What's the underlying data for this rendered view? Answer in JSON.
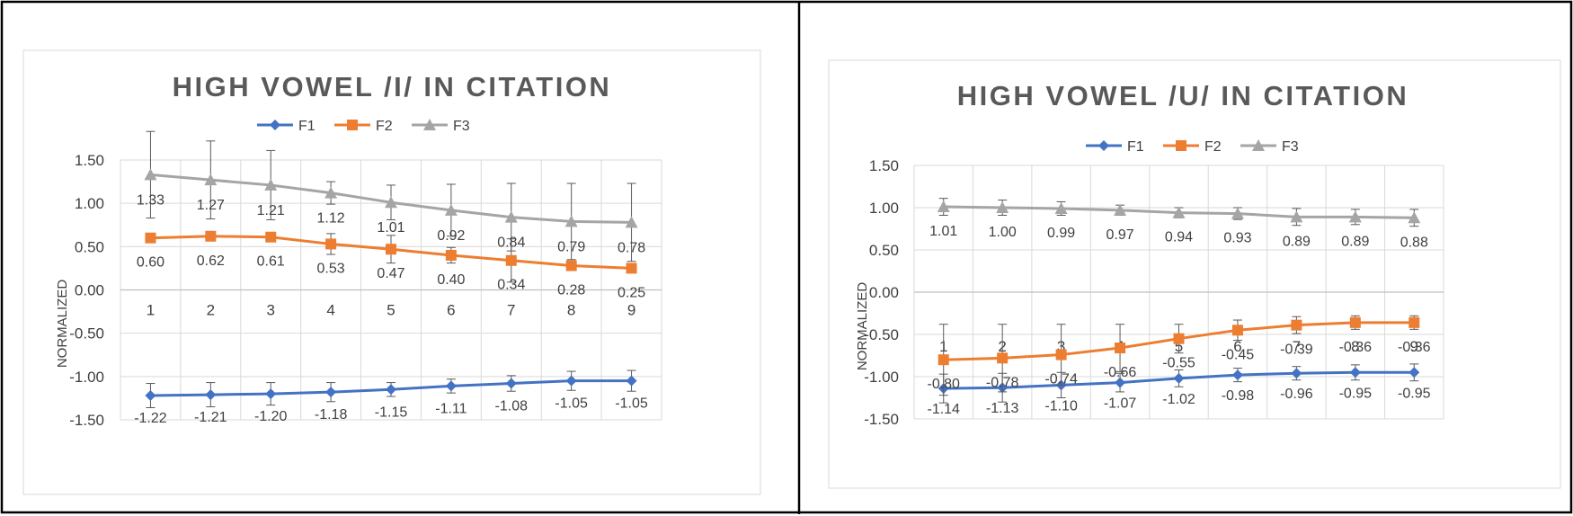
{
  "chart_data": [
    {
      "type": "line",
      "title": "HIGH VOWEL /I/ IN CITATION",
      "xlabel": "",
      "ylabel": "NORMALIZED",
      "ylim": [
        -1.5,
        1.5
      ],
      "yticks": [
        "1.50",
        "1.00",
        "0.50",
        "0.00",
        "-0.50",
        "-1.00",
        "-1.50"
      ],
      "categories": [
        "1",
        "2",
        "3",
        "4",
        "5",
        "6",
        "7",
        "8",
        "9"
      ],
      "grid": true,
      "legend": "top-center",
      "series": [
        {
          "name": "F1",
          "color": "#4472C4",
          "marker": "diamond",
          "values": [
            -1.22,
            -1.21,
            -1.2,
            -1.18,
            -1.15,
            -1.11,
            -1.08,
            -1.05,
            -1.05
          ],
          "labels": [
            "-1.22",
            "-1.21",
            "-1.20",
            "-1.18",
            "-1.15",
            "-1.11",
            "-1.08",
            "-1.05",
            "-1.05"
          ],
          "error": [
            0.14,
            0.14,
            0.13,
            0.11,
            0.08,
            0.08,
            0.09,
            0.11,
            0.12
          ]
        },
        {
          "name": "F2",
          "color": "#ED7D31",
          "marker": "square",
          "values": [
            0.6,
            0.62,
            0.61,
            0.53,
            0.47,
            0.4,
            0.34,
            0.28,
            0.25
          ],
          "labels": [
            "0.60",
            "0.62",
            "0.61",
            "0.53",
            "0.47",
            "0.40",
            "0.34",
            "0.28",
            "0.25"
          ],
          "error": [
            0.05,
            0.05,
            0.05,
            0.12,
            0.16,
            0.09,
            0.25,
            0.05,
            0.05
          ]
        },
        {
          "name": "F3",
          "color": "#A5A5A5",
          "marker": "triangle",
          "values": [
            1.33,
            1.27,
            1.21,
            1.12,
            1.01,
            0.92,
            0.84,
            0.79,
            0.78
          ],
          "labels": [
            "1.33",
            "1.27",
            "1.21",
            "1.12",
            "1.01",
            "0.92",
            "0.84",
            "0.79",
            "0.78"
          ],
          "error": [
            0.5,
            0.45,
            0.4,
            0.13,
            0.2,
            0.3,
            0.39,
            0.44,
            0.45
          ]
        }
      ]
    },
    {
      "type": "line",
      "title": "HIGH VOWEL /U/ IN CITATION",
      "xlabel": "",
      "ylabel": "NORMALIZED",
      "ylim": [
        -1.5,
        1.5
      ],
      "yticks": [
        "1.50",
        "1.00",
        "0.50",
        "0.00",
        "-0.50",
        "-1.00",
        "-1.50"
      ],
      "categories": [
        "1",
        "2",
        "3",
        "4",
        "5",
        "6",
        "7",
        "8",
        "9"
      ],
      "grid": true,
      "legend": "top-center",
      "series": [
        {
          "name": "F1",
          "color": "#4472C4",
          "marker": "diamond",
          "values": [
            -1.14,
            -1.13,
            -1.1,
            -1.07,
            -1.02,
            -0.98,
            -0.96,
            -0.95,
            -0.95
          ],
          "labels": [
            "-1.14",
            "-1.13",
            "-1.10",
            "-1.07",
            "-1.02",
            "-0.98",
            "-0.96",
            "-0.95",
            "-0.95"
          ],
          "error": [
            0.17,
            0.17,
            0.15,
            0.11,
            0.1,
            0.08,
            0.08,
            0.09,
            0.1
          ]
        },
        {
          "name": "F2",
          "color": "#ED7D31",
          "marker": "square",
          "values": [
            -0.8,
            -0.78,
            -0.74,
            -0.66,
            -0.55,
            -0.45,
            -0.39,
            -0.36,
            -0.36
          ],
          "labels": [
            "-0.80",
            "-0.78",
            "-0.74",
            "-0.66",
            "-0.55",
            "-0.45",
            "-0.39",
            "-0.36",
            "-0.36"
          ],
          "error": [
            0.42,
            0.4,
            0.36,
            0.28,
            0.17,
            0.12,
            0.1,
            0.08,
            0.08
          ]
        },
        {
          "name": "F3",
          "color": "#A5A5A5",
          "marker": "triangle",
          "values": [
            1.01,
            1.0,
            0.99,
            0.97,
            0.94,
            0.93,
            0.89,
            0.89,
            0.88
          ],
          "labels": [
            "1.01",
            "1.00",
            "0.99",
            "0.97",
            "0.94",
            "0.93",
            "0.89",
            "0.89",
            "0.88"
          ],
          "error": [
            0.1,
            0.09,
            0.08,
            0.06,
            0.06,
            0.07,
            0.1,
            0.09,
            0.1
          ]
        }
      ]
    }
  ]
}
